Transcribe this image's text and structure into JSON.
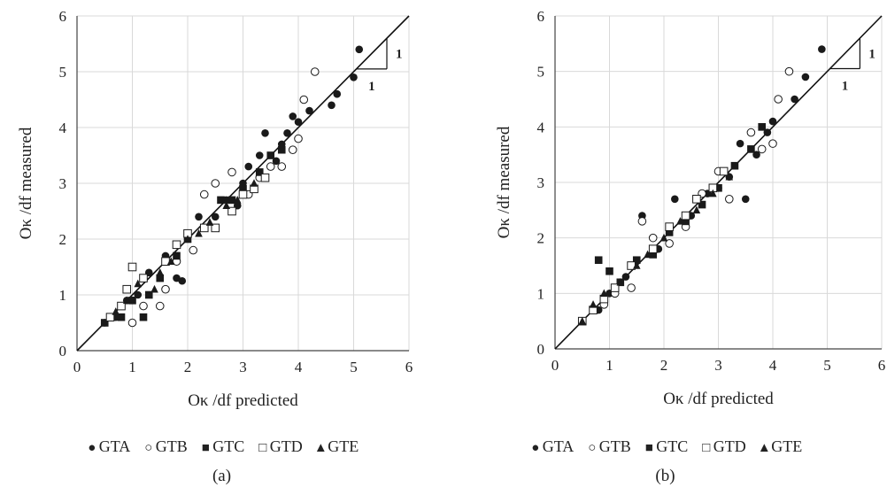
{
  "chart_data": [
    {
      "type": "scatter",
      "panel_label": "(a)",
      "xlabel": "Oκ /df predicted",
      "ylabel": "Oκ /df measured",
      "xlim": [
        0,
        6
      ],
      "ylim": [
        0,
        6
      ],
      "xticks": [
        0,
        1,
        2,
        3,
        4,
        5,
        6
      ],
      "yticks": [
        0,
        1,
        2,
        3,
        4,
        5,
        6
      ],
      "grid": true,
      "legend_position": "bottom",
      "reference_line": {
        "label": "1:1",
        "rise": "1",
        "run": "1"
      },
      "series": [
        {
          "name": "GTA",
          "marker": "filled-circle",
          "points": [
            [
              0.5,
              0.5
            ],
            [
              0.7,
              0.6
            ],
            [
              0.9,
              0.9
            ],
            [
              1.1,
              1.0
            ],
            [
              1.3,
              1.4
            ],
            [
              1.6,
              1.7
            ],
            [
              1.8,
              1.3
            ],
            [
              1.9,
              1.25
            ],
            [
              2.2,
              2.4
            ],
            [
              2.5,
              2.4
            ],
            [
              2.7,
              2.7
            ],
            [
              2.9,
              2.6
            ],
            [
              3.0,
              3.0
            ],
            [
              3.1,
              3.3
            ],
            [
              3.3,
              3.5
            ],
            [
              3.4,
              3.9
            ],
            [
              3.6,
              3.4
            ],
            [
              3.7,
              3.7
            ],
            [
              3.8,
              3.9
            ],
            [
              3.9,
              4.2
            ],
            [
              4.0,
              4.1
            ],
            [
              4.2,
              4.3
            ],
            [
              4.6,
              4.4
            ],
            [
              4.7,
              4.6
            ],
            [
              5.0,
              4.9
            ],
            [
              5.1,
              5.4
            ]
          ]
        },
        {
          "name": "GTB",
          "marker": "open-circle",
          "points": [
            [
              1.0,
              0.5
            ],
            [
              1.2,
              0.8
            ],
            [
              1.5,
              0.8
            ],
            [
              1.6,
              1.1
            ],
            [
              1.8,
              1.6
            ],
            [
              2.1,
              1.8
            ],
            [
              2.3,
              2.8
            ],
            [
              2.5,
              3.0
            ],
            [
              2.8,
              3.2
            ],
            [
              3.1,
              2.8
            ],
            [
              3.3,
              3.1
            ],
            [
              3.5,
              3.3
            ],
            [
              3.7,
              3.3
            ],
            [
              3.9,
              3.6
            ],
            [
              4.0,
              3.8
            ],
            [
              4.1,
              4.5
            ],
            [
              4.3,
              5.0
            ]
          ]
        },
        {
          "name": "GTC",
          "marker": "filled-square",
          "points": [
            [
              0.5,
              0.5
            ],
            [
              0.8,
              0.6
            ],
            [
              1.0,
              0.9
            ],
            [
              1.2,
              0.6
            ],
            [
              1.3,
              1.0
            ],
            [
              1.5,
              1.3
            ],
            [
              1.8,
              1.7
            ],
            [
              2.0,
              2.0
            ],
            [
              2.3,
              2.2
            ],
            [
              2.6,
              2.7
            ],
            [
              2.8,
              2.7
            ],
            [
              3.0,
              2.9
            ],
            [
              3.3,
              3.2
            ],
            [
              3.5,
              3.5
            ],
            [
              3.7,
              3.6
            ]
          ]
        },
        {
          "name": "GTD",
          "marker": "open-square",
          "points": [
            [
              0.6,
              0.6
            ],
            [
              0.8,
              0.8
            ],
            [
              0.9,
              1.1
            ],
            [
              1.0,
              1.5
            ],
            [
              1.2,
              1.3
            ],
            [
              1.6,
              1.6
            ],
            [
              1.8,
              1.9
            ],
            [
              2.0,
              2.1
            ],
            [
              2.3,
              2.2
            ],
            [
              2.5,
              2.2
            ],
            [
              2.8,
              2.5
            ],
            [
              3.0,
              2.8
            ],
            [
              3.2,
              2.9
            ],
            [
              3.4,
              3.1
            ]
          ]
        },
        {
          "name": "GTE",
          "marker": "filled-triangle",
          "points": [
            [
              0.5,
              0.5
            ],
            [
              0.7,
              0.7
            ],
            [
              0.9,
              0.9
            ],
            [
              1.1,
              1.2
            ],
            [
              1.4,
              1.1
            ],
            [
              1.5,
              1.4
            ],
            [
              1.7,
              1.6
            ],
            [
              2.0,
              2.0
            ],
            [
              2.2,
              2.1
            ],
            [
              2.4,
              2.3
            ],
            [
              2.7,
              2.6
            ],
            [
              2.9,
              2.7
            ],
            [
              3.2,
              3.0
            ]
          ]
        }
      ]
    },
    {
      "type": "scatter",
      "panel_label": "(b)",
      "xlabel": "Oκ /df predicted",
      "ylabel": "Oκ /df measured",
      "xlim": [
        0,
        6
      ],
      "ylim": [
        0,
        6
      ],
      "xticks": [
        0,
        1,
        2,
        3,
        4,
        5,
        6
      ],
      "yticks": [
        0,
        1,
        2,
        3,
        4,
        5,
        6
      ],
      "grid": true,
      "legend_position": "bottom",
      "reference_line": {
        "label": "1:1",
        "rise": "1",
        "run": "1"
      },
      "series": [
        {
          "name": "GTA",
          "marker": "filled-circle",
          "points": [
            [
              0.5,
              0.5
            ],
            [
              0.8,
              0.7
            ],
            [
              1.0,
              1.0
            ],
            [
              1.3,
              1.3
            ],
            [
              1.6,
              2.4
            ],
            [
              1.9,
              1.8
            ],
            [
              2.2,
              2.7
            ],
            [
              2.5,
              2.4
            ],
            [
              2.8,
              2.8
            ],
            [
              3.0,
              2.9
            ],
            [
              3.2,
              3.1
            ],
            [
              3.4,
              3.7
            ],
            [
              3.5,
              2.7
            ],
            [
              3.7,
              3.5
            ],
            [
              3.9,
              3.9
            ],
            [
              4.0,
              4.1
            ],
            [
              4.4,
              4.5
            ],
            [
              4.6,
              4.9
            ],
            [
              4.9,
              5.4
            ]
          ]
        },
        {
          "name": "GTB",
          "marker": "open-circle",
          "points": [
            [
              0.9,
              0.8
            ],
            [
              1.1,
              1.0
            ],
            [
              1.4,
              1.1
            ],
            [
              1.6,
              2.3
            ],
            [
              1.8,
              2.0
            ],
            [
              2.1,
              1.9
            ],
            [
              2.4,
              2.2
            ],
            [
              2.7,
              2.8
            ],
            [
              3.0,
              3.2
            ],
            [
              3.2,
              2.7
            ],
            [
              3.6,
              3.9
            ],
            [
              3.8,
              3.6
            ],
            [
              4.0,
              3.7
            ],
            [
              4.1,
              4.5
            ],
            [
              4.3,
              5.0
            ]
          ]
        },
        {
          "name": "GTC",
          "marker": "filled-square",
          "points": [
            [
              0.5,
              0.5
            ],
            [
              0.8,
              1.6
            ],
            [
              1.0,
              1.4
            ],
            [
              1.2,
              1.2
            ],
            [
              1.5,
              1.6
            ],
            [
              1.8,
              1.7
            ],
            [
              2.1,
              2.1
            ],
            [
              2.4,
              2.3
            ],
            [
              2.7,
              2.6
            ],
            [
              3.0,
              2.9
            ],
            [
              3.3,
              3.3
            ],
            [
              3.6,
              3.6
            ],
            [
              3.8,
              4.0
            ]
          ]
        },
        {
          "name": "GTD",
          "marker": "open-square",
          "points": [
            [
              0.5,
              0.5
            ],
            [
              0.7,
              0.7
            ],
            [
              0.9,
              0.9
            ],
            [
              1.1,
              1.1
            ],
            [
              1.4,
              1.5
            ],
            [
              1.8,
              1.8
            ],
            [
              2.1,
              2.2
            ],
            [
              2.4,
              2.4
            ],
            [
              2.6,
              2.7
            ],
            [
              2.9,
              2.9
            ],
            [
              3.1,
              3.2
            ]
          ]
        },
        {
          "name": "GTE",
          "marker": "filled-triangle",
          "points": [
            [
              0.5,
              0.5
            ],
            [
              0.7,
              0.8
            ],
            [
              0.9,
              1.0
            ],
            [
              1.2,
              1.2
            ],
            [
              1.5,
              1.5
            ],
            [
              1.7,
              1.7
            ],
            [
              2.0,
              2.0
            ],
            [
              2.3,
              2.3
            ],
            [
              2.6,
              2.5
            ],
            [
              2.9,
              2.8
            ],
            [
              3.2,
              3.1
            ]
          ]
        }
      ]
    }
  ]
}
